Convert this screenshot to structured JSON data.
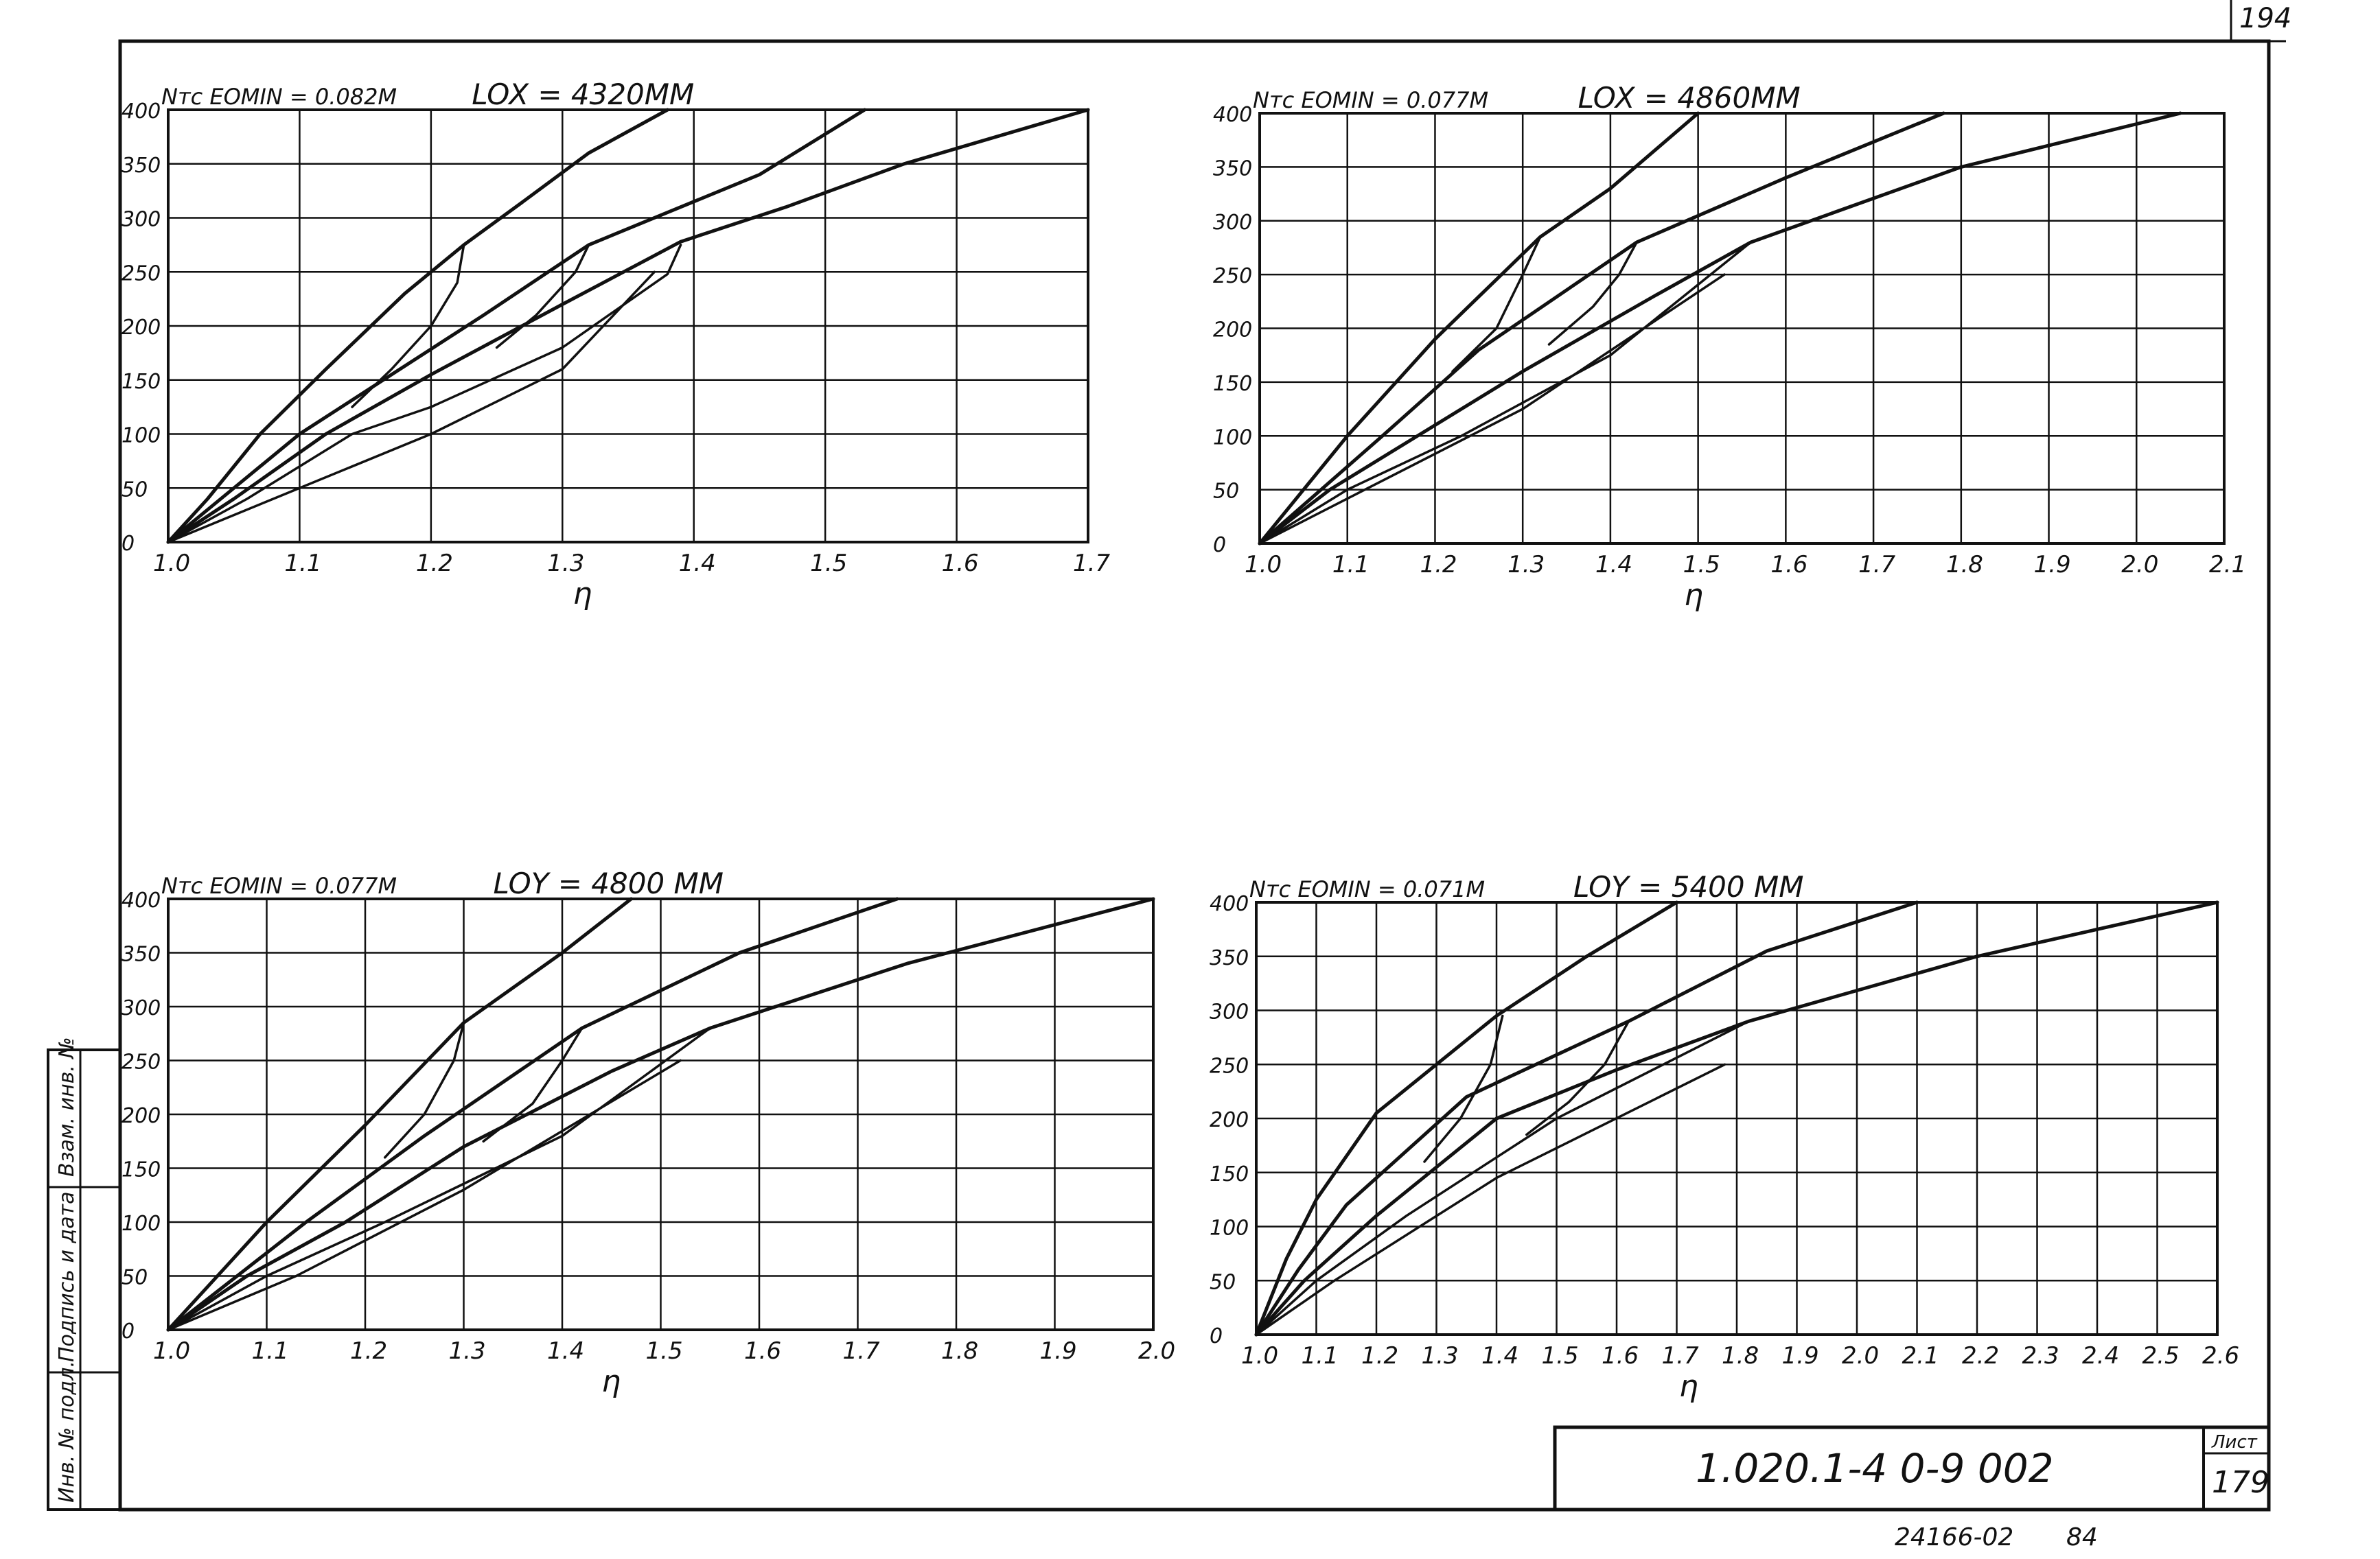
{
  "sheet": {
    "corner_number": "194",
    "document_code": "1.020.1-4  0-9  002",
    "sheet_label": "Лист",
    "sheet_number": "179",
    "bottom_note_1": "24166-02",
    "bottom_note_2": "84",
    "side_labels": [
      "Инв. № подл.",
      "Подпись и дата",
      "Взам. инв. №"
    ]
  },
  "chart_data": [
    {
      "type": "line",
      "header_left": "Nтс  EOMIN = 0.082M",
      "header_right": "LOX = 4320MM",
      "xlabel": "η",
      "xlim": [
        1.0,
        1.7
      ],
      "ylim": [
        0,
        400
      ],
      "xticks": [
        "1.0",
        "1.1",
        "1.2",
        "1.3",
        "1.4",
        "1.5",
        "1.6",
        "1.7"
      ],
      "yticks": [
        "0",
        "50",
        "100",
        "150",
        "200",
        "250",
        "300",
        "350",
        "400"
      ],
      "grid": true,
      "series": [
        {
          "values": [
            [
              1.0,
              0
            ],
            [
              1.03,
              40
            ],
            [
              1.07,
              100
            ],
            [
              1.12,
              160
            ],
            [
              1.18,
              230
            ],
            [
              1.225,
              275
            ],
            [
              1.27,
              315
            ],
            [
              1.32,
              360
            ],
            [
              1.38,
              400
            ]
          ]
        },
        {
          "values": [
            [
              1.0,
              0
            ],
            [
              1.04,
              40
            ],
            [
              1.1,
              100
            ],
            [
              1.17,
              155
            ],
            [
              1.24,
              210
            ],
            [
              1.32,
              275
            ],
            [
              1.38,
              305
            ],
            [
              1.45,
              340
            ],
            [
              1.53,
              400
            ]
          ]
        },
        {
          "values": [
            [
              1.0,
              0
            ],
            [
              1.05,
              40
            ],
            [
              1.12,
              100
            ],
            [
              1.2,
              155
            ],
            [
              1.3,
              220
            ],
            [
              1.39,
              278
            ],
            [
              1.47,
              310
            ],
            [
              1.56,
              350
            ],
            [
              1.7,
              400
            ]
          ]
        },
        {
          "values": [
            [
              1.0,
              0
            ],
            [
              1.06,
              40
            ],
            [
              1.14,
              100
            ],
            [
              1.2,
              125
            ],
            [
              1.3,
              180
            ],
            [
              1.38,
              248
            ],
            [
              1.39,
              275
            ]
          ]
        },
        {
          "values": [
            [
              1.0,
              0
            ],
            [
              1.08,
              40
            ],
            [
              1.2,
              100
            ],
            [
              1.3,
              160
            ],
            [
              1.37,
              250
            ]
          ]
        },
        {
          "values": [
            [
              1.225,
              275
            ],
            [
              1.22,
              240
            ],
            [
              1.2,
              200
            ],
            [
              1.17,
              160
            ],
            [
              1.14,
              125
            ]
          ]
        },
        {
          "values": [
            [
              1.32,
              275
            ],
            [
              1.31,
              250
            ],
            [
              1.28,
              210
            ],
            [
              1.25,
              180
            ]
          ]
        }
      ]
    },
    {
      "type": "line",
      "header_left": "Nтс  EOMIN = 0.077M",
      "header_right": "LOX = 4860MM",
      "xlabel": "η",
      "xlim": [
        1.0,
        2.1
      ],
      "ylim": [
        0,
        400
      ],
      "xticks": [
        "1.0",
        "1.1",
        "1.2",
        "1.3",
        "1.4",
        "1.5",
        "1.6",
        "1.7",
        "1.8",
        "1.9",
        "2.0",
        "2.1"
      ],
      "yticks": [
        "0",
        "50",
        "100",
        "150",
        "200",
        "250",
        "300",
        "350",
        "400"
      ],
      "grid": true,
      "series": [
        {
          "values": [
            [
              1.0,
              0
            ],
            [
              1.05,
              50
            ],
            [
              1.1,
              100
            ],
            [
              1.2,
              190
            ],
            [
              1.32,
              285
            ],
            [
              1.4,
              330
            ],
            [
              1.5,
              400
            ]
          ]
        },
        {
          "values": [
            [
              1.0,
              0
            ],
            [
              1.07,
              50
            ],
            [
              1.14,
              100
            ],
            [
              1.25,
              180
            ],
            [
              1.43,
              280
            ],
            [
              1.6,
              340
            ],
            [
              1.78,
              400
            ]
          ]
        },
        {
          "values": [
            [
              1.0,
              0
            ],
            [
              1.08,
              50
            ],
            [
              1.18,
              100
            ],
            [
              1.3,
              160
            ],
            [
              1.45,
              230
            ],
            [
              1.56,
              280
            ],
            [
              1.8,
              350
            ],
            [
              2.05,
              400
            ]
          ]
        },
        {
          "values": [
            [
              1.0,
              0
            ],
            [
              1.1,
              50
            ],
            [
              1.23,
              100
            ],
            [
              1.4,
              175
            ],
            [
              1.56,
              280
            ]
          ]
        },
        {
          "values": [
            [
              1.0,
              0
            ],
            [
              1.12,
              50
            ],
            [
              1.3,
              125
            ],
            [
              1.53,
              250
            ]
          ]
        },
        {
          "values": [
            [
              1.32,
              285
            ],
            [
              1.3,
              250
            ],
            [
              1.27,
              200
            ],
            [
              1.22,
              160
            ]
          ]
        },
        {
          "values": [
            [
              1.43,
              280
            ],
            [
              1.41,
              250
            ],
            [
              1.38,
              220
            ],
            [
              1.33,
              185
            ]
          ]
        }
      ]
    },
    {
      "type": "line",
      "header_left": "Nтс  EOMIN = 0.077M",
      "header_right": "LOY = 4800 MM",
      "xlabel": "η",
      "xlim": [
        1.0,
        2.0
      ],
      "ylim": [
        0,
        400
      ],
      "xticks": [
        "1.0",
        "1.1",
        "1.2",
        "1.3",
        "1.4",
        "1.5",
        "1.6",
        "1.7",
        "1.8",
        "1.9",
        "2.0"
      ],
      "yticks": [
        "0",
        "50",
        "100",
        "150",
        "200",
        "250",
        "300",
        "350",
        "400"
      ],
      "grid": true,
      "series": [
        {
          "values": [
            [
              1.0,
              0
            ],
            [
              1.05,
              50
            ],
            [
              1.1,
              100
            ],
            [
              1.2,
              190
            ],
            [
              1.3,
              285
            ],
            [
              1.4,
              350
            ],
            [
              1.47,
              400
            ]
          ]
        },
        {
          "values": [
            [
              1.0,
              0
            ],
            [
              1.07,
              50
            ],
            [
              1.14,
              100
            ],
            [
              1.26,
              180
            ],
            [
              1.42,
              280
            ],
            [
              1.58,
              350
            ],
            [
              1.74,
              400
            ]
          ]
        },
        {
          "values": [
            [
              1.0,
              0
            ],
            [
              1.08,
              50
            ],
            [
              1.18,
              100
            ],
            [
              1.3,
              170
            ],
            [
              1.45,
              240
            ],
            [
              1.55,
              280
            ],
            [
              1.75,
              340
            ],
            [
              2.0,
              400
            ]
          ]
        },
        {
          "values": [
            [
              1.0,
              0
            ],
            [
              1.1,
              50
            ],
            [
              1.22,
              100
            ],
            [
              1.4,
              180
            ],
            [
              1.55,
              280
            ]
          ]
        },
        {
          "values": [
            [
              1.0,
              0
            ],
            [
              1.13,
              50
            ],
            [
              1.3,
              130
            ],
            [
              1.52,
              250
            ]
          ]
        },
        {
          "values": [
            [
              1.3,
              285
            ],
            [
              1.29,
              250
            ],
            [
              1.26,
              200
            ],
            [
              1.22,
              160
            ]
          ]
        },
        {
          "values": [
            [
              1.42,
              280
            ],
            [
              1.4,
              250
            ],
            [
              1.37,
              210
            ],
            [
              1.32,
              175
            ]
          ]
        }
      ]
    },
    {
      "type": "line",
      "header_left": "Nтс  EOMIN = 0.071M",
      "header_right": "LOY = 5400 MM",
      "xlabel": "η",
      "xlim": [
        1.0,
        2.6
      ],
      "ylim": [
        0,
        400
      ],
      "xticks": [
        "1.0",
        "1.1",
        "1.2",
        "1.3",
        "1.4",
        "1.5",
        "1.6",
        "1.7",
        "1.8",
        "1.9",
        "2.0",
        "2.1",
        "2.2",
        "2.3",
        "2.4",
        "2.5",
        "2.6"
      ],
      "yticks": [
        "0",
        "50",
        "100",
        "150",
        "200",
        "250",
        "300",
        "350",
        "400"
      ],
      "grid": true,
      "series": [
        {
          "values": [
            [
              1.0,
              0
            ],
            [
              1.05,
              70
            ],
            [
              1.1,
              125
            ],
            [
              1.2,
              205
            ],
            [
              1.4,
              295
            ],
            [
              1.55,
              350
            ],
            [
              1.7,
              400
            ]
          ]
        },
        {
          "values": [
            [
              1.0,
              0
            ],
            [
              1.07,
              60
            ],
            [
              1.15,
              120
            ],
            [
              1.35,
              220
            ],
            [
              1.62,
              290
            ],
            [
              1.85,
              355
            ],
            [
              2.1,
              400
            ]
          ]
        },
        {
          "values": [
            [
              1.0,
              0
            ],
            [
              1.08,
              50
            ],
            [
              1.2,
              110
            ],
            [
              1.4,
              200
            ],
            [
              1.6,
              245
            ],
            [
              1.82,
              290
            ],
            [
              2.2,
              350
            ],
            [
              2.6,
              400
            ]
          ]
        },
        {
          "values": [
            [
              1.0,
              0
            ],
            [
              1.1,
              50
            ],
            [
              1.25,
              110
            ],
            [
              1.5,
              200
            ],
            [
              1.82,
              290
            ]
          ]
        },
        {
          "values": [
            [
              1.0,
              0
            ],
            [
              1.13,
              50
            ],
            [
              1.4,
              145
            ],
            [
              1.78,
              250
            ]
          ]
        },
        {
          "values": [
            [
              1.41,
              295
            ],
            [
              1.39,
              250
            ],
            [
              1.34,
              200
            ],
            [
              1.28,
              160
            ]
          ]
        },
        {
          "values": [
            [
              1.62,
              290
            ],
            [
              1.58,
              250
            ],
            [
              1.52,
              215
            ],
            [
              1.45,
              185
            ]
          ]
        }
      ]
    }
  ]
}
